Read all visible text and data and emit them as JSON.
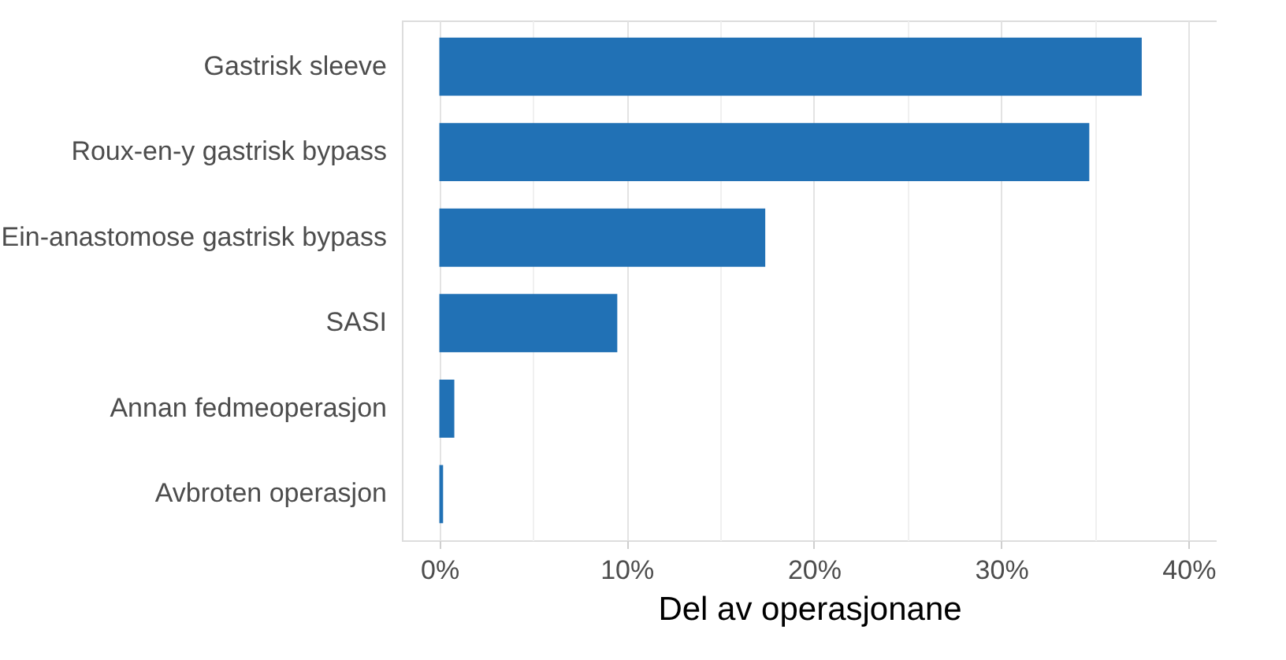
{
  "chart_data": {
    "type": "bar",
    "orientation": "horizontal",
    "xlabel": "Del av operasjonane",
    "categories": [
      "Gastrisk sleeve",
      "Roux-en-y gastrisk bypass",
      "Ein-anastomose gastrisk bypass",
      "SASI",
      "Annan fedmeoperasjon",
      "Avbroten operasjon"
    ],
    "values": [
      37.5,
      34.7,
      17.4,
      9.5,
      0.8,
      0.2
    ],
    "color": "#2171b5",
    "xlim": [
      -2,
      41.5
    ],
    "xticks": [
      {
        "value": 0,
        "label": "0%"
      },
      {
        "value": 5,
        "label": null
      },
      {
        "value": 10,
        "label": "10%"
      },
      {
        "value": 15,
        "label": null
      },
      {
        "value": 20,
        "label": "20%"
      },
      {
        "value": 25,
        "label": null
      },
      {
        "value": 30,
        "label": "30%"
      },
      {
        "value": 35,
        "label": null
      },
      {
        "value": 40,
        "label": "40%"
      }
    ],
    "grid": "x"
  }
}
